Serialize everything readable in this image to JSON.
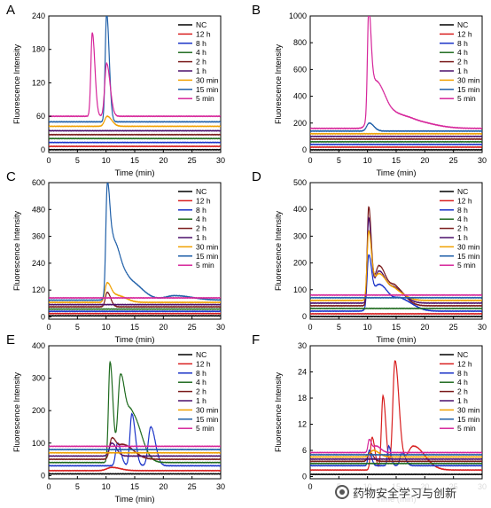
{
  "colors": {
    "NC": "#000000",
    "12 h": "#d81e1e",
    "8 h": "#1a33c8",
    "4 h": "#1f6b1f",
    "2 h": "#7a1a1a",
    "1 h": "#4b0f6b",
    "30 min": "#f0a000",
    "15 min": "#1f5fa8",
    "5 min": "#d6259a"
  },
  "watermark": "药物安全学习与创新",
  "chart_data": [
    {
      "panel": "A",
      "type": "line",
      "xlabel": "Time (min)",
      "ylabel": "Fluorescence Intensity",
      "xlim": [
        0,
        30
      ],
      "ylim": [
        -5,
        240
      ],
      "xticks": [
        "0",
        "5",
        "10",
        "15",
        "20",
        "25",
        "30"
      ],
      "yticks": [
        "0",
        "60",
        "120",
        "180",
        "240"
      ],
      "legend": "top-right",
      "series": [
        {
          "name": "NC",
          "baseline": 0,
          "peaks": []
        },
        {
          "name": "12 h",
          "baseline": 6,
          "peaks": []
        },
        {
          "name": "8 h",
          "baseline": 13,
          "peaks": []
        },
        {
          "name": "4 h",
          "baseline": 20,
          "peaks": []
        },
        {
          "name": "2 h",
          "baseline": 27,
          "peaks": []
        },
        {
          "name": "1 h",
          "baseline": 34,
          "peaks": []
        },
        {
          "name": "30 min",
          "baseline": 42,
          "peaks": [
            {
              "t": 10.2,
              "h": 60,
              "w": 0.8
            }
          ]
        },
        {
          "name": "15 min",
          "baseline": 50,
          "peaks": [
            {
              "t": 10.1,
              "h": 245,
              "w": 0.45
            }
          ]
        },
        {
          "name": "5 min",
          "baseline": 60,
          "peaks": [
            {
              "t": 7.6,
              "h": 210,
              "w": 0.45
            },
            {
              "t": 10.1,
              "h": 155,
              "w": 0.6
            }
          ]
        }
      ]
    },
    {
      "panel": "B",
      "type": "line",
      "xlabel": "Time (min)",
      "ylabel": "Fluorescence Intensity",
      "xlim": [
        0,
        30
      ],
      "ylim": [
        -20,
        1000
      ],
      "xticks": [
        "0",
        "5",
        "10",
        "15",
        "20",
        "25",
        "30"
      ],
      "yticks": [
        "0",
        "200",
        "400",
        "600",
        "800",
        "1000"
      ],
      "legend": "top-right",
      "series": [
        {
          "name": "NC",
          "baseline": 0,
          "peaks": []
        },
        {
          "name": "12 h",
          "baseline": 20,
          "peaks": []
        },
        {
          "name": "8 h",
          "baseline": 40,
          "peaks": []
        },
        {
          "name": "4 h",
          "baseline": 60,
          "peaks": []
        },
        {
          "name": "2 h",
          "baseline": 80,
          "peaks": []
        },
        {
          "name": "1 h",
          "baseline": 100,
          "peaks": []
        },
        {
          "name": "30 min",
          "baseline": 120,
          "peaks": []
        },
        {
          "name": "15 min",
          "baseline": 140,
          "peaks": [
            {
              "t": 10.3,
              "h": 200,
              "w": 0.8
            }
          ]
        },
        {
          "name": "5 min",
          "baseline": 160,
          "peaks": [
            {
              "t": 10.2,
              "h": 900,
              "w": 0.4
            },
            {
              "t": 11.2,
              "h": 480,
              "w": 1.4
            },
            {
              "t": 13.5,
              "h": 280,
              "w": 2.5
            },
            {
              "t": 18,
              "h": 210,
              "w": 3.5
            }
          ]
        }
      ]
    },
    {
      "panel": "C",
      "type": "line",
      "xlabel": "Time (min)",
      "ylabel": "Fluorescence Intensity",
      "xlim": [
        0,
        30
      ],
      "ylim": [
        -10,
        600
      ],
      "xticks": [
        "0",
        "5",
        "10",
        "15",
        "20",
        "25",
        "30"
      ],
      "yticks": [
        "0",
        "120",
        "240",
        "360",
        "480",
        "600"
      ],
      "legend": "top-right",
      "series": [
        {
          "name": "NC",
          "baseline": 5,
          "peaks": []
        },
        {
          "name": "12 h",
          "baseline": 15,
          "peaks": []
        },
        {
          "name": "8 h",
          "baseline": 25,
          "peaks": []
        },
        {
          "name": "4 h",
          "baseline": 35,
          "peaks": []
        },
        {
          "name": "2 h",
          "baseline": 45,
          "peaks": [
            {
              "t": 10.2,
              "h": 110,
              "w": 0.6
            }
          ]
        },
        {
          "name": "1 h",
          "baseline": 55,
          "peaks": []
        },
        {
          "name": "30 min",
          "baseline": 65,
          "peaks": [
            {
              "t": 10.2,
              "h": 150,
              "w": 0.7
            },
            {
              "t": 12,
              "h": 95,
              "w": 1.5
            }
          ]
        },
        {
          "name": "15 min",
          "baseline": 75,
          "peaks": [
            {
              "t": 10.2,
              "h": 530,
              "w": 0.45
            },
            {
              "t": 11.3,
              "h": 330,
              "w": 1.2
            },
            {
              "t": 14,
              "h": 160,
              "w": 2.2
            },
            {
              "t": 22,
              "h": 95,
              "w": 3
            }
          ]
        },
        {
          "name": "5 min",
          "baseline": 85,
          "peaks": []
        }
      ]
    },
    {
      "panel": "D",
      "type": "line",
      "xlabel": "Time (min)",
      "ylabel": "Fluorescence Intensity",
      "xlim": [
        0,
        30
      ],
      "ylim": [
        -10,
        500
      ],
      "xticks": [
        "0",
        "5",
        "10",
        "15",
        "20",
        "25",
        "30"
      ],
      "yticks": [
        "0",
        "100",
        "200",
        "300",
        "400",
        "500"
      ],
      "legend": "top-right",
      "series": [
        {
          "name": "NC",
          "baseline": 0,
          "peaks": []
        },
        {
          "name": "12 h",
          "baseline": 10,
          "peaks": []
        },
        {
          "name": "8 h",
          "baseline": 20,
          "peaks": [
            {
              "t": 10.2,
              "h": 210,
              "w": 0.5
            },
            {
              "t": 12,
              "h": 120,
              "w": 1.8
            },
            {
              "t": 16,
              "h": 60,
              "w": 2
            }
          ]
        },
        {
          "name": "4 h",
          "baseline": 30,
          "peaks": []
        },
        {
          "name": "2 h",
          "baseline": 40,
          "peaks": [
            {
              "t": 10.2,
              "h": 400,
              "w": 0.45
            },
            {
              "t": 12,
              "h": 190,
              "w": 1.4
            },
            {
              "t": 15,
              "h": 100,
              "w": 1.6
            }
          ]
        },
        {
          "name": "1 h",
          "baseline": 50,
          "peaks": [
            {
              "t": 10.2,
              "h": 360,
              "w": 0.45
            },
            {
              "t": 12,
              "h": 170,
              "w": 1.4
            },
            {
              "t": 15,
              "h": 95,
              "w": 1.6
            }
          ]
        },
        {
          "name": "30 min",
          "baseline": 60,
          "peaks": [
            {
              "t": 10.2,
              "h": 310,
              "w": 0.5
            },
            {
              "t": 12,
              "h": 160,
              "w": 1.5
            },
            {
              "t": 15,
              "h": 90,
              "w": 1.6
            }
          ]
        },
        {
          "name": "15 min",
          "baseline": 70,
          "peaks": []
        },
        {
          "name": "5 min",
          "baseline": 80,
          "peaks": []
        }
      ]
    },
    {
      "panel": "E",
      "type": "line",
      "xlabel": "Time (min)",
      "ylabel": "Fluorescence Intensity",
      "xlim": [
        0,
        30
      ],
      "ylim": [
        -10,
        400
      ],
      "xticks": [
        "0",
        "5",
        "10",
        "15",
        "20",
        "25",
        "30"
      ],
      "yticks": [
        "0",
        "100",
        "200",
        "300",
        "400"
      ],
      "legend": "top-right",
      "series": [
        {
          "name": "NC",
          "baseline": 5,
          "peaks": []
        },
        {
          "name": "12 h",
          "baseline": 15,
          "peaks": [
            {
              "t": 11,
              "h": 25,
              "w": 1.5
            }
          ]
        },
        {
          "name": "8 h",
          "baseline": 30,
          "peaks": [
            {
              "t": 12,
              "h": 100,
              "w": 0.6
            },
            {
              "t": 14.5,
              "h": 190,
              "w": 0.6
            },
            {
              "t": 17.8,
              "h": 150,
              "w": 0.8
            }
          ]
        },
        {
          "name": "4 h",
          "baseline": 40,
          "peaks": [
            {
              "t": 10.7,
              "h": 350,
              "w": 0.5
            },
            {
              "t": 12.5,
              "h": 300,
              "w": 0.8
            },
            {
              "t": 14.5,
              "h": 190,
              "w": 1.6
            }
          ]
        },
        {
          "name": "2 h",
          "baseline": 50,
          "peaks": [
            {
              "t": 11,
              "h": 110,
              "w": 0.7
            },
            {
              "t": 13,
              "h": 95,
              "w": 1.8
            }
          ]
        },
        {
          "name": "1 h",
          "baseline": 60,
          "peaks": [
            {
              "t": 11,
              "h": 100,
              "w": 0.8
            }
          ]
        },
        {
          "name": "30 min",
          "baseline": 70,
          "peaks": []
        },
        {
          "name": "15 min",
          "baseline": 80,
          "peaks": []
        },
        {
          "name": "5 min",
          "baseline": 90,
          "peaks": []
        }
      ]
    },
    {
      "panel": "F",
      "type": "line",
      "xlabel": "Time (min)",
      "ylabel": "Fluorescence Intensity",
      "xlim": [
        0,
        30
      ],
      "ylim": [
        -0.5,
        30
      ],
      "xticks": [
        "0",
        "5",
        "10",
        "15",
        "20",
        "25",
        "30"
      ],
      "yticks": [
        "0",
        "6",
        "12",
        "18",
        "24",
        "30"
      ],
      "legend": "top-right",
      "series": [
        {
          "name": "NC",
          "baseline": 0.5,
          "peaks": []
        },
        {
          "name": "12 h",
          "baseline": 1.5,
          "peaks": [
            {
              "t": 10.8,
              "h": 9,
              "w": 0.5
            },
            {
              "t": 12.7,
              "h": 18.5,
              "w": 0.5
            },
            {
              "t": 14.8,
              "h": 26.5,
              "w": 0.7
            },
            {
              "t": 18,
              "h": 7,
              "w": 2
            }
          ]
        },
        {
          "name": "8 h",
          "baseline": 2.5,
          "peaks": [
            {
              "t": 10.3,
              "h": 6,
              "w": 0.4
            },
            {
              "t": 13.7,
              "h": 7,
              "w": 0.4
            },
            {
              "t": 16,
              "h": 5.5,
              "w": 0.6
            }
          ]
        },
        {
          "name": "4 h",
          "baseline": 3,
          "peaks": []
        },
        {
          "name": "2 h",
          "baseline": 3.5,
          "peaks": [
            {
              "t": 10.4,
              "h": 5.5,
              "w": 0.6
            }
          ]
        },
        {
          "name": "1 h",
          "baseline": 4,
          "peaks": []
        },
        {
          "name": "30 min",
          "baseline": 4.5,
          "peaks": [
            {
              "t": 11,
              "h": 6,
              "w": 1
            }
          ]
        },
        {
          "name": "15 min",
          "baseline": 5,
          "peaks": []
        },
        {
          "name": "5 min",
          "baseline": 5.5,
          "peaks": [
            {
              "t": 10.3,
              "h": 8.5,
              "w": 0.4
            },
            {
              "t": 11.5,
              "h": 7,
              "w": 0.8
            }
          ]
        }
      ]
    }
  ]
}
